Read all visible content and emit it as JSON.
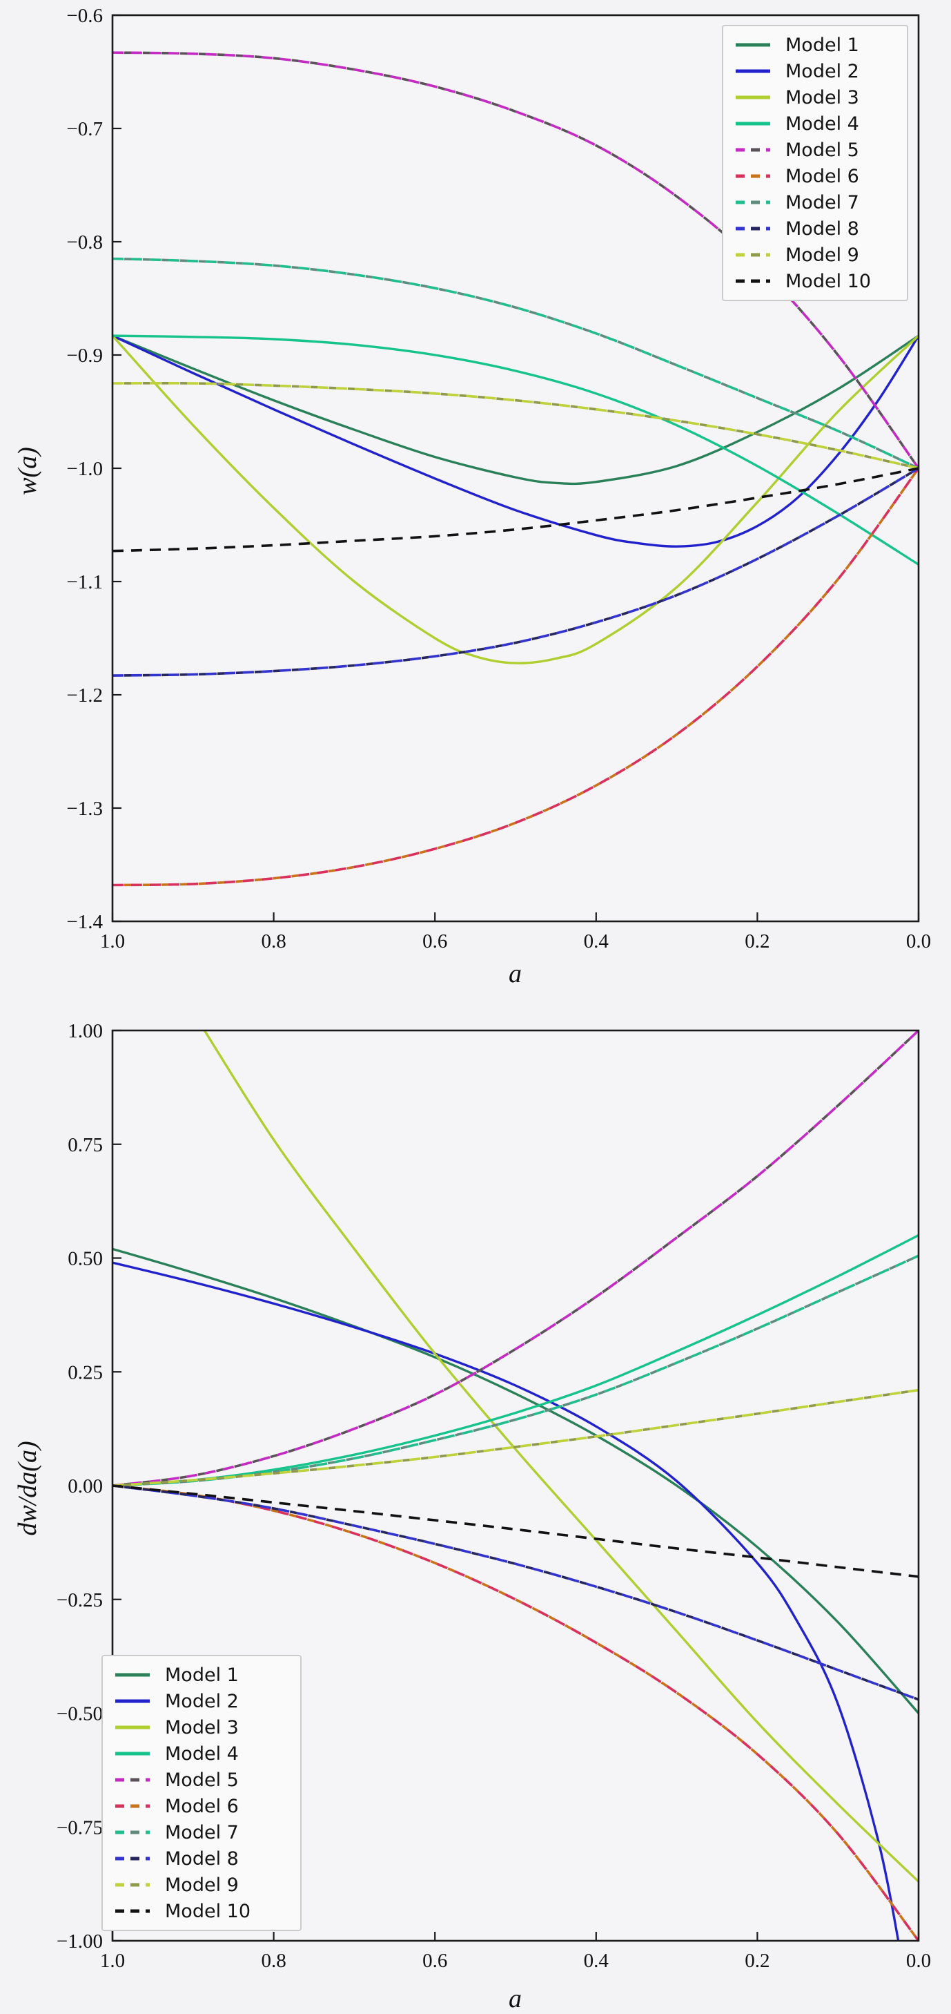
{
  "figure": {
    "background": "#f3f3f5",
    "plot_background": "#f5f5f7",
    "spine_color": "#1a1a1a"
  },
  "chart_data": [
    {
      "type": "line",
      "title": "",
      "xlabel": "a",
      "ylabel": "w(a)",
      "xlim": [
        1.0,
        0.0
      ],
      "ylim": [
        -1.4,
        -0.6
      ],
      "grid": false,
      "legend_position": "upper right",
      "x_ticks": [
        {
          "v": 1.0,
          "label": "1.0"
        },
        {
          "v": 0.8,
          "label": "0.8"
        },
        {
          "v": 0.6,
          "label": "0.6"
        },
        {
          "v": 0.4,
          "label": "0.4"
        },
        {
          "v": 0.2,
          "label": "0.2"
        },
        {
          "v": 0.0,
          "label": "0.0"
        }
      ],
      "y_ticks": [
        {
          "v": -0.6,
          "label": "−0.6"
        },
        {
          "v": -0.7,
          "label": "−0.7"
        },
        {
          "v": -0.8,
          "label": "−0.8"
        },
        {
          "v": -0.9,
          "label": "−0.9"
        },
        {
          "v": -1.0,
          "label": "−1.0"
        },
        {
          "v": -1.1,
          "label": "−1.1"
        },
        {
          "v": -1.2,
          "label": "−1.2"
        },
        {
          "v": -1.3,
          "label": "−1.3"
        },
        {
          "v": -1.4,
          "label": "−1.4"
        }
      ],
      "series": [
        {
          "name": "Model 1",
          "color": "#2a8159",
          "style": "solid",
          "overlay": null,
          "x": [
            1,
            0.9,
            0.8,
            0.7,
            0.6,
            0.5,
            0.45,
            0.4,
            0.3,
            0.2,
            0.1,
            0
          ],
          "y": [
            -0.883,
            -0.912,
            -0.94,
            -0.966,
            -0.99,
            -1.008,
            -1.013,
            -1.012,
            -0.998,
            -0.968,
            -0.93,
            -0.883
          ]
        },
        {
          "name": "Model 2",
          "color": "#2222cc",
          "style": "solid",
          "overlay": null,
          "x": [
            1,
            0.9,
            0.8,
            0.7,
            0.6,
            0.5,
            0.4,
            0.35,
            0.3,
            0.25,
            0.2,
            0.15,
            0.1,
            0.05,
            0
          ],
          "y": [
            -0.883,
            -0.916,
            -0.948,
            -0.979,
            -1.009,
            -1.037,
            -1.059,
            -1.066,
            -1.069,
            -1.065,
            -1.051,
            -1.026,
            -0.988,
            -0.94,
            -0.883
          ]
        },
        {
          "name": "Model 3",
          "color": "#afce30",
          "style": "solid",
          "overlay": null,
          "x": [
            1,
            0.9,
            0.8,
            0.7,
            0.6,
            0.55,
            0.5,
            0.45,
            0.4,
            0.3,
            0.2,
            0.1,
            0
          ],
          "y": [
            -0.883,
            -0.962,
            -1.035,
            -1.1,
            -1.15,
            -1.166,
            -1.172,
            -1.168,
            -1.155,
            -1.105,
            -1.03,
            -0.95,
            -0.883
          ]
        },
        {
          "name": "Model 4",
          "color": "#16c38b",
          "style": "solid",
          "overlay": null,
          "x": [
            1,
            0.9,
            0.8,
            0.7,
            0.6,
            0.5,
            0.4,
            0.3,
            0.2,
            0.1,
            0
          ],
          "y": [
            -0.883,
            -0.884,
            -0.886,
            -0.891,
            -0.9,
            -0.914,
            -0.934,
            -0.962,
            -0.998,
            -1.04,
            -1.085
          ]
        },
        {
          "name": "Model 5",
          "color": "#c32bc3",
          "style": "dashed",
          "overlay": "#5a5258",
          "x": [
            1,
            0.9,
            0.8,
            0.7,
            0.6,
            0.5,
            0.4,
            0.3,
            0.2,
            0.1,
            0
          ],
          "y": [
            -0.633,
            -0.634,
            -0.638,
            -0.648,
            -0.663,
            -0.685,
            -0.715,
            -0.76,
            -0.82,
            -0.9,
            -1.0
          ]
        },
        {
          "name": "Model 6",
          "color": "#d8315b",
          "style": "dashed",
          "overlay": "#c9731b",
          "x": [
            1,
            0.9,
            0.8,
            0.7,
            0.6,
            0.5,
            0.4,
            0.3,
            0.2,
            0.1,
            0
          ],
          "y": [
            -1.368,
            -1.367,
            -1.362,
            -1.352,
            -1.336,
            -1.313,
            -1.28,
            -1.235,
            -1.175,
            -1.098,
            -1.0
          ]
        },
        {
          "name": "Model 7",
          "color": "#22bd8e",
          "style": "dashed",
          "overlay": "#5f8c7c",
          "x": [
            1,
            0.9,
            0.8,
            0.7,
            0.6,
            0.5,
            0.4,
            0.3,
            0.2,
            0.1,
            0
          ],
          "y": [
            -0.815,
            -0.817,
            -0.821,
            -0.829,
            -0.841,
            -0.858,
            -0.881,
            -0.909,
            -0.938,
            -0.967,
            -1.0
          ]
        },
        {
          "name": "Model 8",
          "color": "#3333ce",
          "style": "dashed",
          "overlay": "#26265e",
          "x": [
            1,
            0.9,
            0.8,
            0.7,
            0.6,
            0.5,
            0.4,
            0.3,
            0.2,
            0.1,
            0
          ],
          "y": [
            -1.183,
            -1.182,
            -1.179,
            -1.174,
            -1.166,
            -1.154,
            -1.136,
            -1.112,
            -1.08,
            -1.042,
            -1.0
          ]
        },
        {
          "name": "Model 9",
          "color": "#bfd23b",
          "style": "dashed",
          "overlay": "#8f9a4a",
          "x": [
            1,
            0.9,
            0.8,
            0.7,
            0.6,
            0.5,
            0.4,
            0.3,
            0.2,
            0.1,
            0
          ],
          "y": [
            -0.925,
            -0.925,
            -0.927,
            -0.93,
            -0.934,
            -0.94,
            -0.948,
            -0.958,
            -0.97,
            -0.984,
            -1.0
          ]
        },
        {
          "name": "Model 10",
          "color": "#111111",
          "style": "dashed",
          "overlay": null,
          "x": [
            1,
            0.9,
            0.8,
            0.7,
            0.6,
            0.5,
            0.4,
            0.3,
            0.2,
            0.1,
            0
          ],
          "y": [
            -1.073,
            -1.071,
            -1.068,
            -1.064,
            -1.06,
            -1.054,
            -1.046,
            -1.037,
            -1.026,
            -1.014,
            -1.0
          ]
        }
      ]
    },
    {
      "type": "line",
      "title": "",
      "xlabel": "a",
      "ylabel": "dw/da(a)",
      "xlim": [
        1.0,
        0.0
      ],
      "ylim": [
        -1.0,
        1.0
      ],
      "grid": false,
      "legend_position": "lower left",
      "x_ticks": [
        {
          "v": 1.0,
          "label": "1.0"
        },
        {
          "v": 0.8,
          "label": "0.8"
        },
        {
          "v": 0.6,
          "label": "0.6"
        },
        {
          "v": 0.4,
          "label": "0.4"
        },
        {
          "v": 0.2,
          "label": "0.2"
        },
        {
          "v": 0.0,
          "label": "0.0"
        }
      ],
      "y_ticks": [
        {
          "v": 1.0,
          "label": "1.00"
        },
        {
          "v": 0.75,
          "label": "0.75"
        },
        {
          "v": 0.5,
          "label": "0.50"
        },
        {
          "v": 0.25,
          "label": "0.25"
        },
        {
          "v": 0.0,
          "label": "0.00"
        },
        {
          "v": -0.25,
          "label": "−0.25"
        },
        {
          "v": -0.5,
          "label": "−0.50"
        },
        {
          "v": -0.75,
          "label": "−0.75"
        },
        {
          "v": -1.0,
          "label": "−1.00"
        }
      ],
      "series": [
        {
          "name": "Model 1",
          "color": "#2a8159",
          "style": "solid",
          "overlay": null,
          "x": [
            1,
            0.9,
            0.8,
            0.7,
            0.6,
            0.5,
            0.4,
            0.3,
            0.2,
            0.1,
            0
          ],
          "y": [
            0.52,
            0.468,
            0.412,
            0.35,
            0.282,
            0.202,
            0.11,
            0.0,
            -0.135,
            -0.3,
            -0.5
          ]
        },
        {
          "name": "Model 2",
          "color": "#2222cc",
          "style": "solid",
          "overlay": null,
          "x": [
            1,
            0.9,
            0.8,
            0.7,
            0.6,
            0.5,
            0.4,
            0.3,
            0.2,
            0.15,
            0.1,
            0.05,
            0.02
          ],
          "y": [
            0.49,
            0.447,
            0.4,
            0.348,
            0.29,
            0.22,
            0.13,
            0.01,
            -0.17,
            -0.3,
            -0.48,
            -0.78,
            -1.05
          ]
        },
        {
          "name": "Model 3",
          "color": "#afce30",
          "style": "solid",
          "overlay": null,
          "x": [
            1,
            0.9,
            0.8,
            0.7,
            0.6,
            0.5,
            0.4,
            0.3,
            0.2,
            0.1,
            0
          ],
          "y": [
            1.32,
            1.04,
            0.76,
            0.52,
            0.29,
            0.08,
            -0.12,
            -0.32,
            -0.52,
            -0.7,
            -0.87
          ]
        },
        {
          "name": "Model 4",
          "color": "#16c38b",
          "style": "solid",
          "overlay": null,
          "x": [
            1,
            0.9,
            0.8,
            0.7,
            0.6,
            0.5,
            0.4,
            0.3,
            0.2,
            0.1,
            0
          ],
          "y": [
            0,
            0.012,
            0.035,
            0.068,
            0.11,
            0.16,
            0.22,
            0.295,
            0.375,
            0.46,
            0.55
          ]
        },
        {
          "name": "Model 5",
          "color": "#c32bc3",
          "style": "dashed",
          "overlay": "#5a5258",
          "x": [
            1,
            0.9,
            0.8,
            0.7,
            0.6,
            0.5,
            0.4,
            0.3,
            0.2,
            0.1,
            0
          ],
          "y": [
            0,
            0.022,
            0.065,
            0.125,
            0.2,
            0.3,
            0.415,
            0.545,
            0.68,
            0.835,
            1.0
          ]
        },
        {
          "name": "Model 6",
          "color": "#d8315b",
          "style": "dashed",
          "overlay": "#c9731b",
          "x": [
            1,
            0.9,
            0.8,
            0.7,
            0.6,
            0.5,
            0.4,
            0.3,
            0.2,
            0.1,
            0
          ],
          "y": [
            0,
            -0.02,
            -0.055,
            -0.105,
            -0.17,
            -0.25,
            -0.345,
            -0.455,
            -0.59,
            -0.765,
            -1.0
          ]
        },
        {
          "name": "Model 7",
          "color": "#22bd8e",
          "style": "dashed",
          "overlay": "#5f8c7c",
          "x": [
            1,
            0.9,
            0.8,
            0.7,
            0.6,
            0.5,
            0.4,
            0.3,
            0.2,
            0.1,
            0
          ],
          "y": [
            0,
            0.01,
            0.03,
            0.06,
            0.1,
            0.145,
            0.2,
            0.27,
            0.345,
            0.425,
            0.505
          ]
        },
        {
          "name": "Model 8",
          "color": "#3333ce",
          "style": "dashed",
          "overlay": "#26265e",
          "x": [
            1,
            0.9,
            0.8,
            0.7,
            0.6,
            0.5,
            0.4,
            0.3,
            0.2,
            0.1,
            0
          ],
          "y": [
            0,
            -0.022,
            -0.05,
            -0.088,
            -0.128,
            -0.172,
            -0.222,
            -0.278,
            -0.34,
            -0.405,
            -0.47
          ]
        },
        {
          "name": "Model 9",
          "color": "#bfd23b",
          "style": "dashed",
          "overlay": "#8f9a4a",
          "x": [
            1,
            0.9,
            0.8,
            0.7,
            0.6,
            0.5,
            0.4,
            0.3,
            0.2,
            0.1,
            0
          ],
          "y": [
            0,
            0.012,
            0.027,
            0.044,
            0.063,
            0.085,
            0.108,
            0.133,
            0.158,
            0.184,
            0.21
          ]
        },
        {
          "name": "Model 10",
          "color": "#111111",
          "style": "dashed",
          "overlay": null,
          "x": [
            1,
            0.9,
            0.8,
            0.7,
            0.6,
            0.5,
            0.4,
            0.3,
            0.2,
            0.1,
            0
          ],
          "y": [
            0,
            -0.018,
            -0.037,
            -0.056,
            -0.076,
            -0.096,
            -0.117,
            -0.138,
            -0.158,
            -0.179,
            -0.2
          ]
        }
      ]
    }
  ]
}
